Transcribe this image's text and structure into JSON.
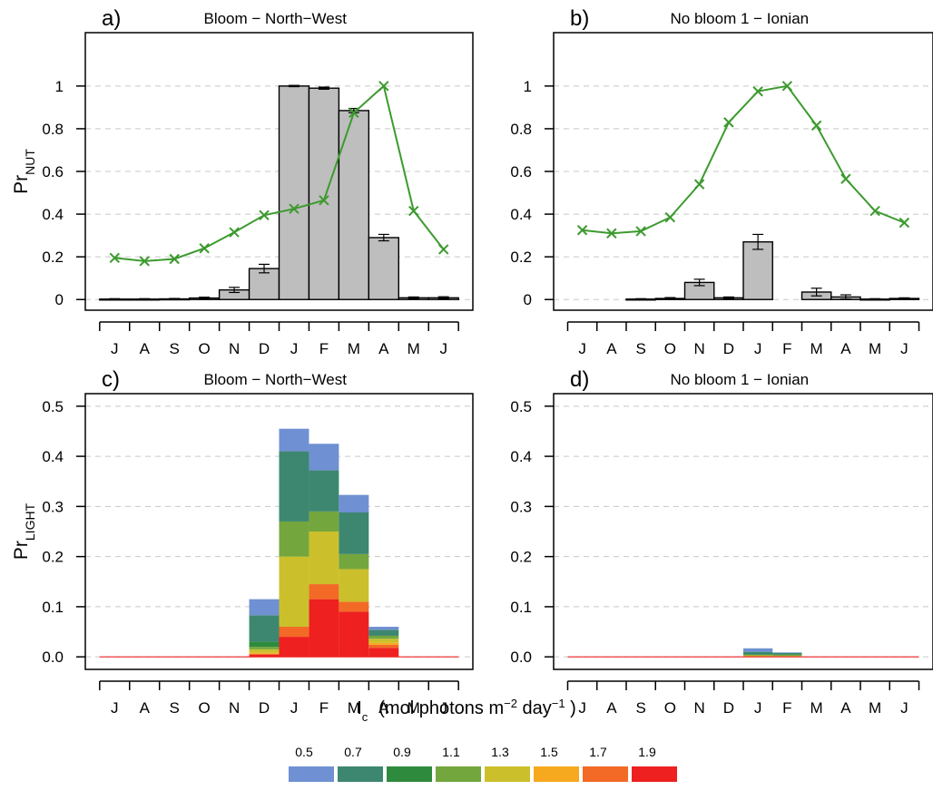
{
  "chart_data": [
    {
      "panel_label": "a)",
      "title": "Bloom − North−West",
      "type": "bar",
      "ylabel": {
        "main": "Pr",
        "sub": "NUT"
      },
      "ylim": [
        -0.05,
        1.25
      ],
      "yticks": [
        "0",
        "0.2",
        "0.4",
        "0.6",
        "0.8",
        "1"
      ],
      "ytick_values": [
        0,
        0.2,
        0.4,
        0.6,
        0.8,
        1.0
      ],
      "categories": [
        "J",
        "A",
        "S",
        "O",
        "N",
        "D",
        "J",
        "F",
        "M",
        "A",
        "M",
        "J"
      ],
      "grid": true,
      "series": [
        {
          "kind": "bar",
          "color": "#bebebe",
          "values": [
            0.002,
            0.002,
            0.003,
            0.007,
            0.045,
            0.145,
            1.0,
            0.99,
            0.885,
            0.29,
            0.008,
            0.008
          ],
          "errors": [
            0.002,
            0.002,
            0.002,
            0.004,
            0.012,
            0.02,
            0.003,
            0.005,
            0.01,
            0.015,
            0.004,
            0.005
          ]
        },
        {
          "kind": "line",
          "color": "#3c9a2e",
          "marker": "×",
          "values": [
            0.195,
            0.18,
            0.19,
            0.24,
            0.315,
            0.395,
            0.425,
            0.465,
            0.875,
            1.0,
            0.415,
            0.235
          ]
        }
      ]
    },
    {
      "panel_label": "b)",
      "title": "No bloom 1 − Ionian",
      "type": "bar",
      "ylim": [
        -0.05,
        1.25
      ],
      "yticks": [
        "0",
        "0.2",
        "0.4",
        "0.6",
        "0.8",
        "1"
      ],
      "ytick_values": [
        0,
        0.2,
        0.4,
        0.6,
        0.8,
        1.0
      ],
      "categories": [
        "J",
        "A",
        "S",
        "O",
        "N",
        "D",
        "J",
        "F",
        "M",
        "A",
        "M",
        "J"
      ],
      "grid": true,
      "series": [
        {
          "kind": "bar",
          "color": "#bebebe",
          "values": [
            0,
            0,
            0.002,
            0.005,
            0.08,
            0.008,
            0.27,
            0,
            0.035,
            0.012,
            0.002,
            0.005
          ],
          "errors": [
            0,
            0,
            0.002,
            0.004,
            0.015,
            0.004,
            0.035,
            0,
            0.018,
            0.01,
            0.002,
            0.003
          ]
        },
        {
          "kind": "line",
          "color": "#3c9a2e",
          "marker": "×",
          "values": [
            0.325,
            0.31,
            0.32,
            0.385,
            0.54,
            0.83,
            0.975,
            1.0,
            0.815,
            0.565,
            0.415,
            0.36
          ]
        }
      ]
    },
    {
      "panel_label": "c)",
      "title": "Bloom − North−West",
      "type": "bar",
      "stacked": true,
      "ylabel": {
        "main": "Pr",
        "sub": "LIGHT"
      },
      "ylim": [
        -0.025,
        0.525
      ],
      "yticks": [
        "0.0",
        "0.1",
        "0.2",
        "0.3",
        "0.4",
        "0.5"
      ],
      "ytick_values": [
        0,
        0.1,
        0.2,
        0.3,
        0.4,
        0.5
      ],
      "categories": [
        "J",
        "A",
        "S",
        "O",
        "N",
        "D",
        "J",
        "F",
        "M",
        "A",
        "M",
        "J"
      ],
      "grid": true,
      "series": [
        {
          "name": "1.9",
          "color": "#ee2020",
          "values": [
            0,
            0,
            0,
            0,
            0,
            0.004,
            0.04,
            0.115,
            0.09,
            0.018,
            0,
            0
          ]
        },
        {
          "name": "1.7",
          "color": "#f26a26",
          "values": [
            0,
            0,
            0,
            0,
            0,
            0.002,
            0.02,
            0.03,
            0.02,
            0.006,
            0,
            0
          ]
        },
        {
          "name": "1.5",
          "color": "#f6a81e",
          "values": [
            0,
            0,
            0,
            0,
            0,
            0.002,
            0.0,
            0.0,
            0.0,
            0.004,
            0,
            0
          ]
        },
        {
          "name": "1.3",
          "color": "#cbc02c",
          "values": [
            0,
            0,
            0,
            0,
            0,
            0.007,
            0.14,
            0.105,
            0.065,
            0.008,
            0,
            0
          ]
        },
        {
          "name": "1.1",
          "color": "#74a63e",
          "values": [
            0,
            0,
            0,
            0,
            0,
            0.005,
            0.07,
            0.04,
            0.03,
            0.006,
            0,
            0
          ]
        },
        {
          "name": "0.9",
          "color": "#2e8a3c",
          "values": [
            0,
            0,
            0,
            0,
            0,
            0.01,
            0.0,
            0.0,
            0.0,
            0.0,
            0,
            0
          ]
        },
        {
          "name": "0.7",
          "color": "#3d8770",
          "values": [
            0,
            0,
            0,
            0,
            0,
            0.053,
            0.14,
            0.082,
            0.083,
            0.012,
            0,
            0
          ]
        },
        {
          "name": "0.5",
          "color": "#6f90d2",
          "values": [
            0,
            0,
            0,
            0,
            0,
            0.032,
            0.045,
            0.053,
            0.035,
            0.006,
            0,
            0
          ]
        }
      ]
    },
    {
      "panel_label": "d)",
      "title": "No bloom 1 − Ionian",
      "type": "bar",
      "stacked": true,
      "ylim": [
        -0.025,
        0.525
      ],
      "yticks": [
        "0.0",
        "0.1",
        "0.2",
        "0.3",
        "0.4",
        "0.5"
      ],
      "ytick_values": [
        0,
        0.1,
        0.2,
        0.3,
        0.4,
        0.5
      ],
      "categories": [
        "J",
        "A",
        "S",
        "O",
        "N",
        "D",
        "J",
        "F",
        "M",
        "A",
        "M",
        "J"
      ],
      "grid": true,
      "series": [
        {
          "name": "1.9",
          "color": "#ee2020",
          "values": [
            0,
            0,
            0,
            0,
            0,
            0,
            0.001,
            0.001,
            0,
            0,
            0,
            0
          ]
        },
        {
          "name": "1.7",
          "color": "#f26a26",
          "values": [
            0,
            0,
            0,
            0,
            0,
            0,
            0,
            0,
            0,
            0,
            0,
            0
          ]
        },
        {
          "name": "1.5",
          "color": "#f6a81e",
          "values": [
            0,
            0,
            0,
            0,
            0,
            0,
            0,
            0,
            0,
            0,
            0,
            0
          ]
        },
        {
          "name": "1.3",
          "color": "#cbc02c",
          "values": [
            0,
            0,
            0,
            0,
            0,
            0,
            0.002,
            0.001,
            0,
            0,
            0,
            0
          ]
        },
        {
          "name": "1.1",
          "color": "#74a63e",
          "values": [
            0,
            0,
            0,
            0,
            0,
            0,
            0.001,
            0.002,
            0,
            0,
            0,
            0
          ]
        },
        {
          "name": "0.9",
          "color": "#2e8a3c",
          "values": [
            0,
            0,
            0,
            0,
            0,
            0,
            0.001,
            0.001,
            0,
            0,
            0,
            0
          ]
        },
        {
          "name": "0.7",
          "color": "#3d8770",
          "values": [
            0,
            0,
            0,
            0,
            0,
            0,
            0.005,
            0.003,
            0,
            0,
            0,
            0
          ]
        },
        {
          "name": "0.5",
          "color": "#6f90d2",
          "values": [
            0,
            0,
            0,
            0,
            0,
            0,
            0.007,
            0.001,
            0,
            0,
            0,
            0
          ]
        }
      ]
    }
  ],
  "legend": {
    "title_prefix": "I",
    "title_sub": "c",
    "title_unit_start": "(mol photons  m",
    "title_exp1": "−2",
    "title_mid": " day",
    "title_exp2": "−1",
    "title_end": " )",
    "items": [
      {
        "label": "0.5",
        "color": "#6f90d2"
      },
      {
        "label": "0.7",
        "color": "#3d8770"
      },
      {
        "label": "0.9",
        "color": "#2e8a3c"
      },
      {
        "label": "1.1",
        "color": "#74a63e"
      },
      {
        "label": "1.3",
        "color": "#cbc02c"
      },
      {
        "label": "1.5",
        "color": "#f6a81e"
      },
      {
        "label": "1.7",
        "color": "#f26a26"
      },
      {
        "label": "1.9",
        "color": "#ee2020"
      }
    ]
  }
}
